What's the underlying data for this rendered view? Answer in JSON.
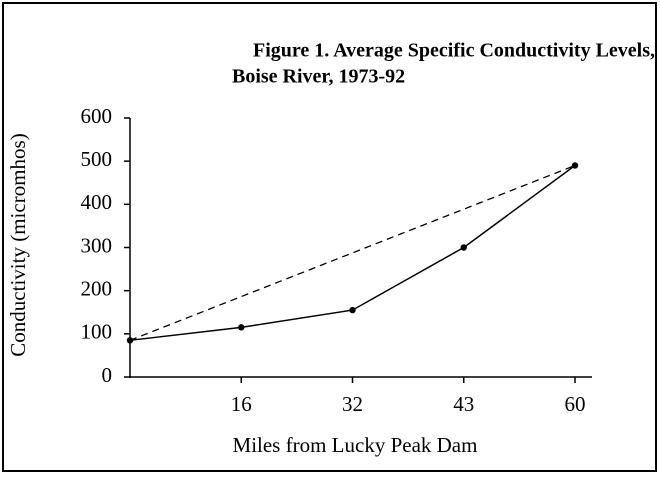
{
  "chart_data": {
    "type": "line",
    "title": [
      "Figure 1. Average Specific Conductivity Levels,",
      "Boise River, 1973-92"
    ],
    "x_label": "Miles from Lucky Peak Dam",
    "y_label": "Conductivity (micromhos)",
    "categories": [
      null,
      "16",
      "32",
      "43",
      "60"
    ],
    "series": [
      {
        "color": "#000000",
        "values": [
          85,
          115,
          155,
          300,
          490
        ]
      }
    ],
    "trend_line": {
      "style": "dashed",
      "color": "#000000"
    },
    "ylim": [
      0,
      600
    ],
    "yticks": [
      0,
      100,
      200,
      300,
      400,
      500,
      600
    ],
    "grid": false
  }
}
